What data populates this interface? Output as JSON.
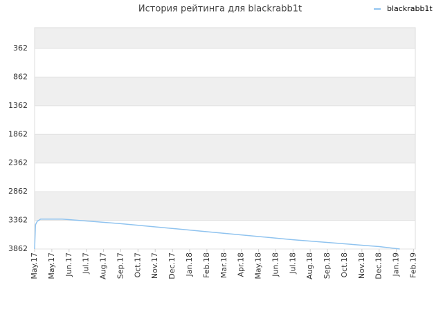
{
  "chart_data": {
    "type": "line",
    "title": "История рейтинга для blackrabb1t",
    "series": [
      {
        "name": "blackrabb1t",
        "color": "#8fc3ef",
        "x": [
          0,
          0.05,
          0.15,
          0.35,
          1.6,
          5,
          10,
          15,
          20,
          21.2
        ],
        "values": [
          3862,
          3440,
          3380,
          3340,
          3340,
          3420,
          3560,
          3700,
          3820,
          3862
        ]
      }
    ],
    "xlim": [
      0,
      22.1
    ],
    "xticks": [
      {
        "value": 0,
        "label": "May.17"
      },
      {
        "value": 1,
        "label": "May.17"
      },
      {
        "value": 2,
        "label": "Jun.17"
      },
      {
        "value": 3,
        "label": "Jul.17"
      },
      {
        "value": 4,
        "label": "Aug.17"
      },
      {
        "value": 5,
        "label": "Sep.17"
      },
      {
        "value": 6,
        "label": "Oct.17"
      },
      {
        "value": 7,
        "label": "Nov.17"
      },
      {
        "value": 8,
        "label": "Dec.17"
      },
      {
        "value": 9,
        "label": "Jan.18"
      },
      {
        "value": 10,
        "label": "Feb.18"
      },
      {
        "value": 11,
        "label": "Mar.18"
      },
      {
        "value": 12,
        "label": "Apr.18"
      },
      {
        "value": 13,
        "label": "May.18"
      },
      {
        "value": 14,
        "label": "Jun.18"
      },
      {
        "value": 15,
        "label": "Jul.18"
      },
      {
        "value": 16,
        "label": "Aug.18"
      },
      {
        "value": 17,
        "label": "Sep.18"
      },
      {
        "value": 18,
        "label": "Oct.18"
      },
      {
        "value": 19,
        "label": "Nov.18"
      },
      {
        "value": 20,
        "label": "Dec.18"
      },
      {
        "value": 21,
        "label": "Jan.19"
      },
      {
        "value": 22,
        "label": "Feb.19"
      }
    ],
    "ylim": [
      3862,
      0
    ],
    "yticks": [
      362,
      862,
      1362,
      1862,
      2362,
      2862,
      3362,
      3862
    ],
    "grid": true,
    "legend": "top-right"
  }
}
